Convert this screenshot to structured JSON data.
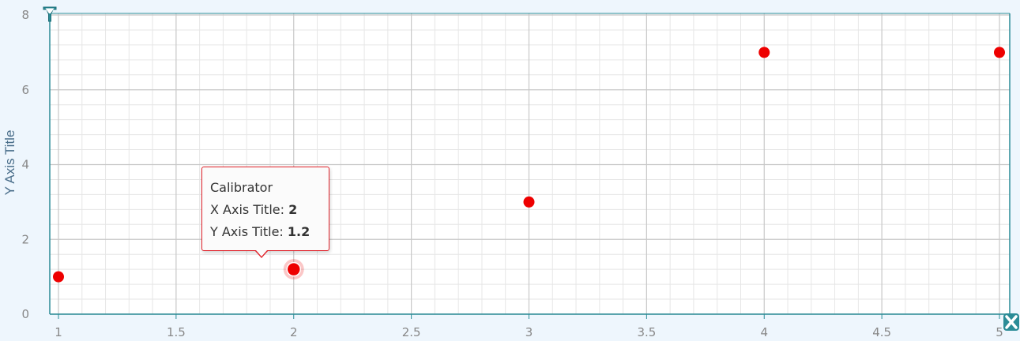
{
  "chart_data": {
    "type": "scatter",
    "xlabel": "",
    "ylabel": "Y Axis Title",
    "xlim": [
      1,
      5
    ],
    "ylim": [
      0,
      8
    ],
    "x_ticks": [
      "1",
      "1.5",
      "2",
      "2.5",
      "3",
      "3.5",
      "4",
      "4.5",
      "5"
    ],
    "y_ticks": [
      "0",
      "2",
      "4",
      "6",
      "8"
    ],
    "grid": true,
    "series": [
      {
        "name": "Calibrator",
        "color": "#ee0000",
        "points": [
          {
            "x": 1,
            "y": 1.0
          },
          {
            "x": 2,
            "y": 1.2
          },
          {
            "x": 3,
            "y": 3.0
          },
          {
            "x": 4,
            "y": 7.0
          },
          {
            "x": 5,
            "y": 7.0
          }
        ]
      }
    ]
  },
  "tooltip": {
    "series_name": "Calibrator",
    "x_label": "X Axis Title: ",
    "x_value": "2",
    "y_label": "Y Axis Title: ",
    "y_value": "1.2"
  },
  "icons": {
    "y_axis": "y-axis-marker-icon",
    "x_axis": "x-axis-marker-icon"
  },
  "colors": {
    "axis": "#2b8c97",
    "major_grid": "#c8c8c8",
    "minor_grid": "#e6e6e6",
    "tick_text": "#888888",
    "point": "#ee0000"
  }
}
